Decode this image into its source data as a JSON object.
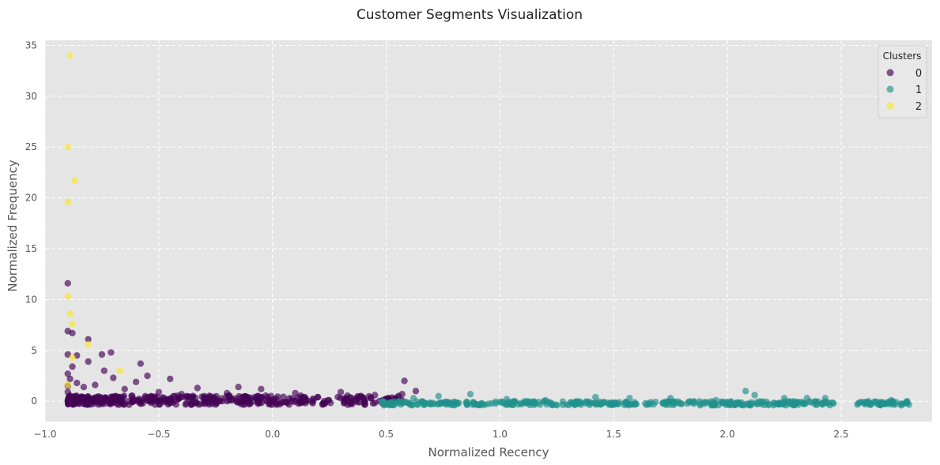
{
  "chart_data": {
    "type": "scatter",
    "title": "Customer Segments Visualization",
    "xlabel": "Normalized Recency",
    "ylabel": "Normalized Frequency",
    "xlim": [
      -1.0,
      2.9
    ],
    "ylim": [
      -2.0,
      35.5
    ],
    "xticks": [
      -1.0,
      -0.5,
      0.0,
      0.5,
      1.0,
      1.5,
      2.0,
      2.5
    ],
    "xtick_labels": [
      "−1.0",
      "−0.5",
      "0.0",
      "0.5",
      "1.0",
      "1.5",
      "2.0",
      "2.5"
    ],
    "yticks": [
      0,
      5,
      10,
      15,
      20,
      25,
      30,
      35
    ],
    "ytick_labels": [
      "0",
      "5",
      "10",
      "15",
      "20",
      "25",
      "30",
      "35"
    ],
    "grid": true,
    "legend": {
      "title": "Clusters",
      "position": "top-right"
    },
    "series": [
      {
        "name": "0",
        "color": "#440154",
        "points": [
          [
            -0.9,
            11.6
          ],
          [
            -0.9,
            6.9
          ],
          [
            -0.88,
            6.7
          ],
          [
            -0.81,
            6.1
          ],
          [
            -0.71,
            4.8
          ],
          [
            -0.9,
            4.6
          ],
          [
            -0.86,
            4.5
          ],
          [
            -0.75,
            4.6
          ],
          [
            -0.81,
            3.9
          ],
          [
            -0.58,
            3.7
          ],
          [
            -0.88,
            3.4
          ],
          [
            -0.74,
            3.0
          ],
          [
            -0.55,
            2.5
          ],
          [
            -0.7,
            2.3
          ],
          [
            -0.45,
            2.2
          ],
          [
            0.58,
            2.0
          ],
          [
            -0.6,
            1.9
          ],
          [
            -0.15,
            1.4
          ],
          [
            -0.33,
            1.3
          ],
          [
            -0.05,
            1.2
          ],
          [
            0.63,
            1.0
          ],
          [
            0.3,
            0.9
          ],
          [
            -0.2,
            0.8
          ],
          [
            0.1,
            0.8
          ],
          [
            0.45,
            0.6
          ],
          [
            0.57,
            0.7
          ],
          [
            -0.9,
            2.7
          ],
          [
            -0.89,
            2.2
          ],
          [
            -0.86,
            1.8
          ],
          [
            -0.83,
            1.4
          ],
          [
            -0.78,
            1.6
          ],
          [
            -0.65,
            1.2
          ],
          [
            -0.5,
            0.9
          ],
          [
            -0.4,
            0.7
          ],
          [
            -0.3,
            0.5
          ],
          [
            0.2,
            0.4
          ],
          [
            0.4,
            0.3
          ],
          [
            0.5,
            0.2
          ],
          [
            0.55,
            0.4
          ],
          [
            -0.9,
            0.9
          ],
          [
            -0.9,
            1.5
          ]
        ],
        "band": {
          "x_min": -0.9,
          "x_max": 0.58,
          "y_min": -0.35,
          "y_max": 0.55,
          "count": 420
        }
      },
      {
        "name": "1",
        "color": "#21918c",
        "points": [
          [
            2.08,
            1.0
          ],
          [
            2.12,
            0.6
          ],
          [
            0.87,
            0.7
          ],
          [
            0.73,
            0.5
          ],
          [
            1.42,
            0.4
          ],
          [
            1.57,
            0.3
          ],
          [
            1.75,
            0.3
          ],
          [
            2.25,
            0.3
          ],
          [
            2.35,
            0.3
          ],
          [
            2.43,
            0.3
          ],
          [
            1.03,
            0.2
          ],
          [
            0.62,
            0.3
          ],
          [
            1.2,
            0.1
          ],
          [
            1.95,
            0.1
          ],
          [
            2.62,
            0.0
          ],
          [
            2.72,
            0.1
          ],
          [
            2.79,
            0.0
          ]
        ],
        "band": {
          "x_min": 0.48,
          "x_max": 2.8,
          "y_min": -0.4,
          "y_max": 0.0,
          "count": 420,
          "gap": [
            2.47,
            2.57
          ]
        }
      },
      {
        "name": "2",
        "color": "#fde725",
        "points": [
          [
            -0.89,
            34.0
          ],
          [
            -0.9,
            25.0
          ],
          [
            -0.87,
            21.7
          ],
          [
            -0.9,
            19.6
          ],
          [
            -0.9,
            10.3
          ],
          [
            -0.89,
            8.6
          ],
          [
            -0.88,
            7.6
          ],
          [
            -0.81,
            5.6
          ],
          [
            -0.88,
            4.3
          ],
          [
            -0.67,
            3.0
          ],
          [
            -0.9,
            1.6
          ]
        ]
      }
    ]
  }
}
